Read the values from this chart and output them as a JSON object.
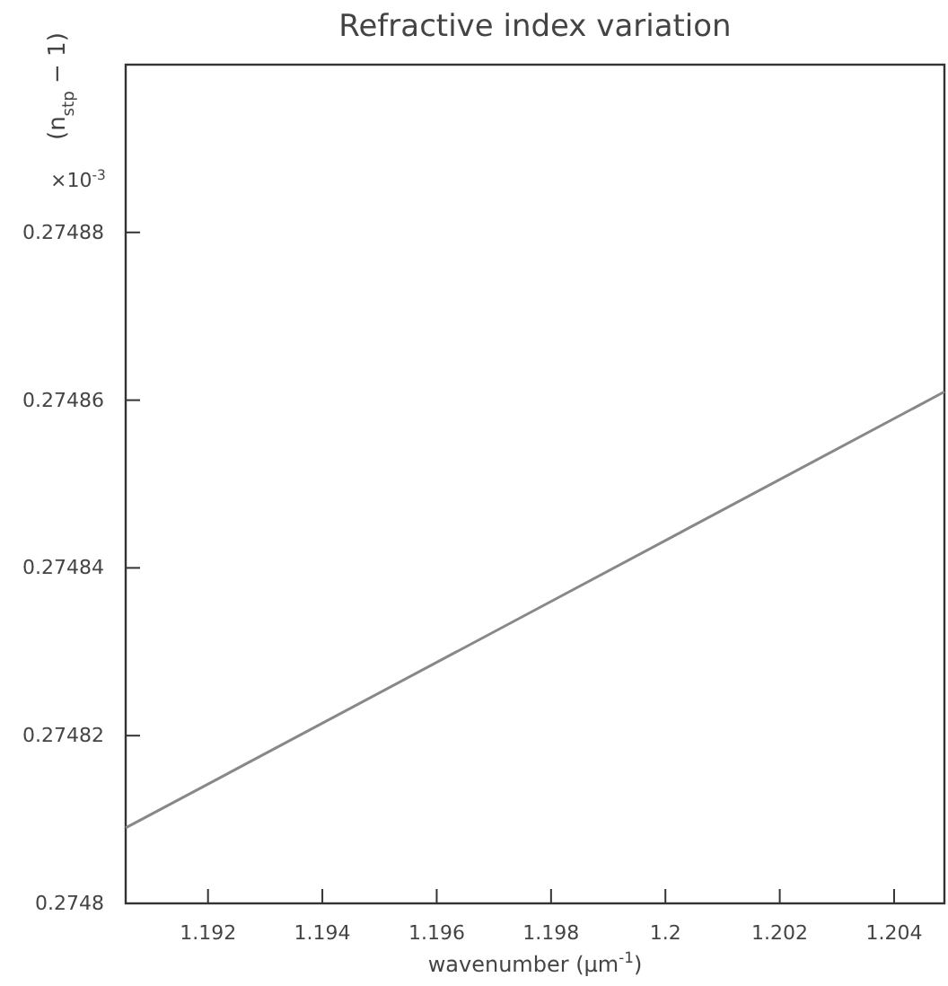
{
  "chart_data": {
    "type": "line",
    "title": "Refractive index variation",
    "xlabel": "wavenumber (μm$^{-1}$)",
    "ylabel": "(n$_{stp}$ − 1)",
    "annotations": [
      "×10$^{-3}$"
    ],
    "x": [
      1.19056,
      1.198,
      1.20488
    ],
    "series": [
      {
        "color": "#888888",
        "values": [
          0.274809,
          0.274836,
          0.274861
        ]
      }
    ],
    "xlim": [
      1.19056,
      1.20488
    ],
    "ylim": [
      0.2748,
      0.2749
    ],
    "xticks": [
      1.192,
      1.194,
      1.196,
      1.198,
      1.2,
      1.202,
      1.204
    ],
    "yticks": [
      0.2748,
      0.27482,
      0.27484,
      0.27486,
      0.27488
    ],
    "grid": false,
    "marker": "none",
    "line_style": "solid"
  }
}
